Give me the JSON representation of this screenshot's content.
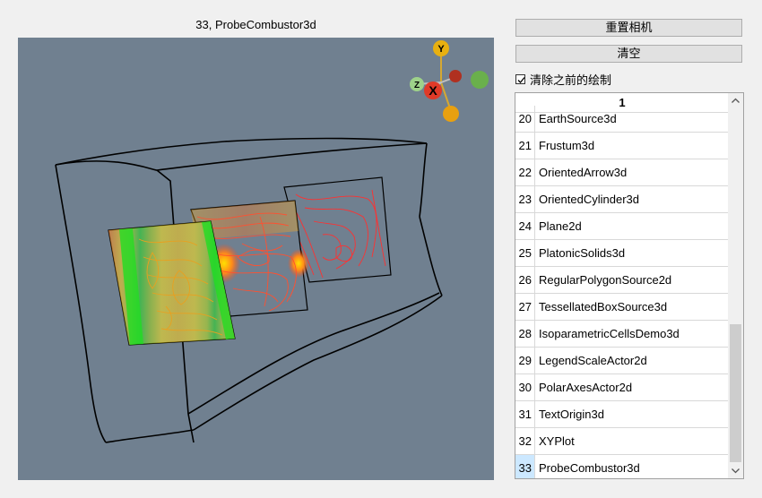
{
  "window": {
    "title": "33, ProbeCombustor3d"
  },
  "axes": {
    "y_label": "Y",
    "x_label": "X",
    "z_label": "Z"
  },
  "buttons": {
    "reset_camera": "重置相机",
    "clear": "清空"
  },
  "checkbox": {
    "label": "清除之前的绘制",
    "checked": true
  },
  "list": {
    "header": "1",
    "selected": "33",
    "items": [
      {
        "num": "20",
        "name": "EarthSource3d"
      },
      {
        "num": "21",
        "name": "Frustum3d"
      },
      {
        "num": "22",
        "name": "OrientedArrow3d"
      },
      {
        "num": "23",
        "name": "OrientedCylinder3d"
      },
      {
        "num": "24",
        "name": "Plane2d"
      },
      {
        "num": "25",
        "name": "PlatonicSolids3d"
      },
      {
        "num": "26",
        "name": "RegularPolygonSource2d"
      },
      {
        "num": "27",
        "name": "TessellatedBoxSource3d"
      },
      {
        "num": "28",
        "name": "IsoparametricCellsDemo3d"
      },
      {
        "num": "29",
        "name": "LegendScaleActor2d"
      },
      {
        "num": "30",
        "name": "PolarAxesActor2d"
      },
      {
        "num": "31",
        "name": "TextOrigin3d"
      },
      {
        "num": "32",
        "name": "XYPlot"
      },
      {
        "num": "33",
        "name": "ProbeCombustor3d"
      }
    ]
  }
}
